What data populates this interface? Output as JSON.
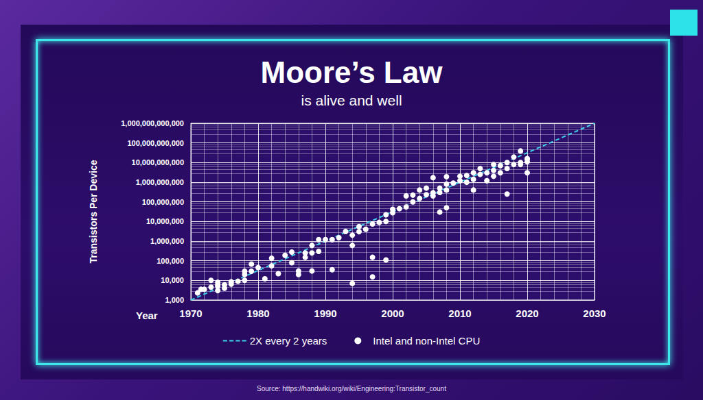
{
  "chart_data": {
    "type": "scatter",
    "title": "Moore’s Law",
    "subtitle": "is alive and well",
    "xlabel": "Year",
    "ylabel": "Transistors Per Device",
    "annotations": [
      "Source: https://handwiki.org/wiki/Engineering:Transistor_count"
    ],
    "log": "y",
    "grid": true,
    "legend": "bottom",
    "xlim": [
      1970,
      2030
    ],
    "xticks": [
      1970,
      1980,
      1990,
      2000,
      2010,
      2020,
      2030
    ],
    "ylim": [
      1000,
      1000000000000
    ],
    "yticks": [
      {
        "value": 1000,
        "label": "1,000"
      },
      {
        "value": 10000,
        "label": "10,000"
      },
      {
        "value": 100000,
        "label": "100,000"
      },
      {
        "value": 1000000,
        "label": "1,000,000"
      },
      {
        "value": 10000000,
        "label": "10,000,000"
      },
      {
        "value": 100000000,
        "label": "100,000,000"
      },
      {
        "value": 1000000000,
        "label": "1,000,000,000"
      },
      {
        "value": 10000000000,
        "label": "10,000,000,000"
      },
      {
        "value": 100000000000,
        "label": "100,000,000,000"
      },
      {
        "value": 1000000000000,
        "label": "1,000,000,000,000"
      }
    ],
    "series": [
      {
        "name": "2X every 2 years",
        "type": "line",
        "line_style": "dashed",
        "color": "#3fd0e8",
        "x": [
          1970,
          2030
        ],
        "values": [
          1000,
          1000000000000
        ]
      },
      {
        "name": "Intel and non-Intel CPU",
        "type": "scatter",
        "marker": "circle",
        "color": "#ffffff",
        "x": [
          1971,
          1971.5,
          1972,
          1973,
          1973,
          1974,
          1974,
          1974,
          1974,
          1975,
          1975,
          1976,
          1976,
          1977,
          1978,
          1978,
          1978,
          1979,
          1979,
          1980,
          1981,
          1982,
          1982,
          1983,
          1984,
          1985,
          1985,
          1986,
          1986,
          1987,
          1987,
          1988,
          1988,
          1988,
          1989,
          1989,
          1990,
          1991,
          1991,
          1992,
          1993,
          1994,
          1994,
          1994,
          1995,
          1995,
          1996,
          1997,
          1997,
          1997,
          1998,
          1999,
          1999,
          1999,
          2000,
          2000,
          2001,
          2002,
          2002,
          2003,
          2003,
          2004,
          2004,
          2005,
          2005,
          2006,
          2006,
          2006,
          2007,
          2007,
          2007,
          2008,
          2008,
          2008,
          2008,
          2009,
          2010,
          2010,
          2011,
          2011,
          2012,
          2012,
          2012,
          2013,
          2013,
          2014,
          2014,
          2015,
          2015,
          2015,
          2016,
          2016,
          2017,
          2017,
          2017,
          2018,
          2018,
          2019,
          2019,
          2019,
          2020,
          2020,
          2020,
          2020
        ],
        "values": [
          2300,
          3500,
          3500,
          4500,
          10000,
          5000,
          6000,
          8000,
          3000,
          6000,
          4000,
          6500,
          8500,
          9000,
          29000,
          10000,
          20000,
          29000,
          68000,
          45000,
          12000,
          55000,
          134000,
          22000,
          190000,
          275000,
          80000,
          30000,
          20000,
          250000,
          150000,
          600000,
          250000,
          30000,
          1200000,
          300000,
          1200000,
          1200000,
          35000,
          1500000,
          3100000,
          7000,
          600000,
          2000000,
          5500000,
          3000000,
          4000000,
          7500000,
          150000,
          15000,
          9000000,
          10000000,
          110000,
          22000000,
          28000000,
          42000000,
          45000000,
          55000000,
          200000000,
          100000000,
          220000000,
          400000000,
          150000000,
          500000000,
          230000000,
          291000000,
          1700000000,
          200000000,
          500000000,
          30000000,
          300000000,
          800000000,
          1900000000,
          50000000,
          400000000,
          900000000,
          1200000000,
          2000000000,
          2200000000,
          1000000000,
          1400000000,
          3000000000,
          400000000,
          2500000000,
          5000000000,
          3000000000,
          1200000000,
          4000000000,
          8000000000,
          2000000000,
          7000000000,
          3000000000,
          10000000000,
          5000000000,
          250000000,
          19000000000,
          8000000000,
          39000000000,
          10000000000,
          8000000000,
          15000000000,
          16000000000,
          3000000000,
          11000000000
        ]
      }
    ]
  }
}
